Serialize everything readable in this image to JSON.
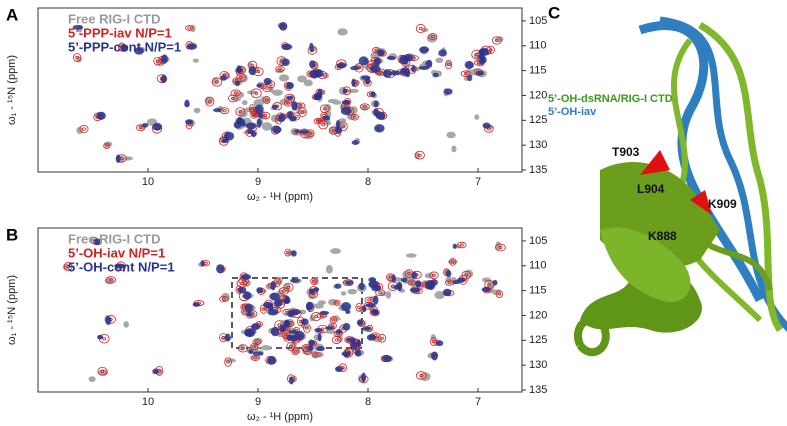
{
  "panels": [
    {
      "label": "A",
      "legend": [
        "Free RIG-I CTD",
        "5’-PPP-iav N/P=1",
        "5’-PPP-cont N/P=1"
      ],
      "xlabel": "ω₂ - ¹H (ppm)",
      "ylabel": "ω₁ - ¹⁵N (ppm)",
      "xlim": [
        11.0,
        6.6
      ],
      "ylim": [
        102.4,
        135.4
      ],
      "xticks": [
        10,
        9,
        8,
        7
      ],
      "yticks": [
        105,
        110,
        115,
        120,
        125,
        130,
        135
      ]
    },
    {
      "label": "B",
      "legend": [
        "Free RIG-I CTD",
        "5’-OH-iav N/P=1",
        "5’-OH-cont N/P=1"
      ],
      "xlabel": "ω₂ - ¹H (ppm)",
      "ylabel": "ω₁ - ¹⁵N (ppm)",
      "xlim": [
        11.0,
        6.6
      ],
      "ylim": [
        102.4,
        135.4
      ],
      "xticks": [
        10,
        9,
        8,
        7
      ],
      "yticks": [
        105,
        110,
        115,
        120,
        125,
        130,
        135
      ]
    }
  ],
  "structure": {
    "label": "C",
    "legend": [
      "5’-OH-dsRNA/RIG-I CTD",
      "5’-OH-iav"
    ],
    "residues": [
      "T903",
      "L904",
      "K909",
      "K888"
    ]
  }
}
